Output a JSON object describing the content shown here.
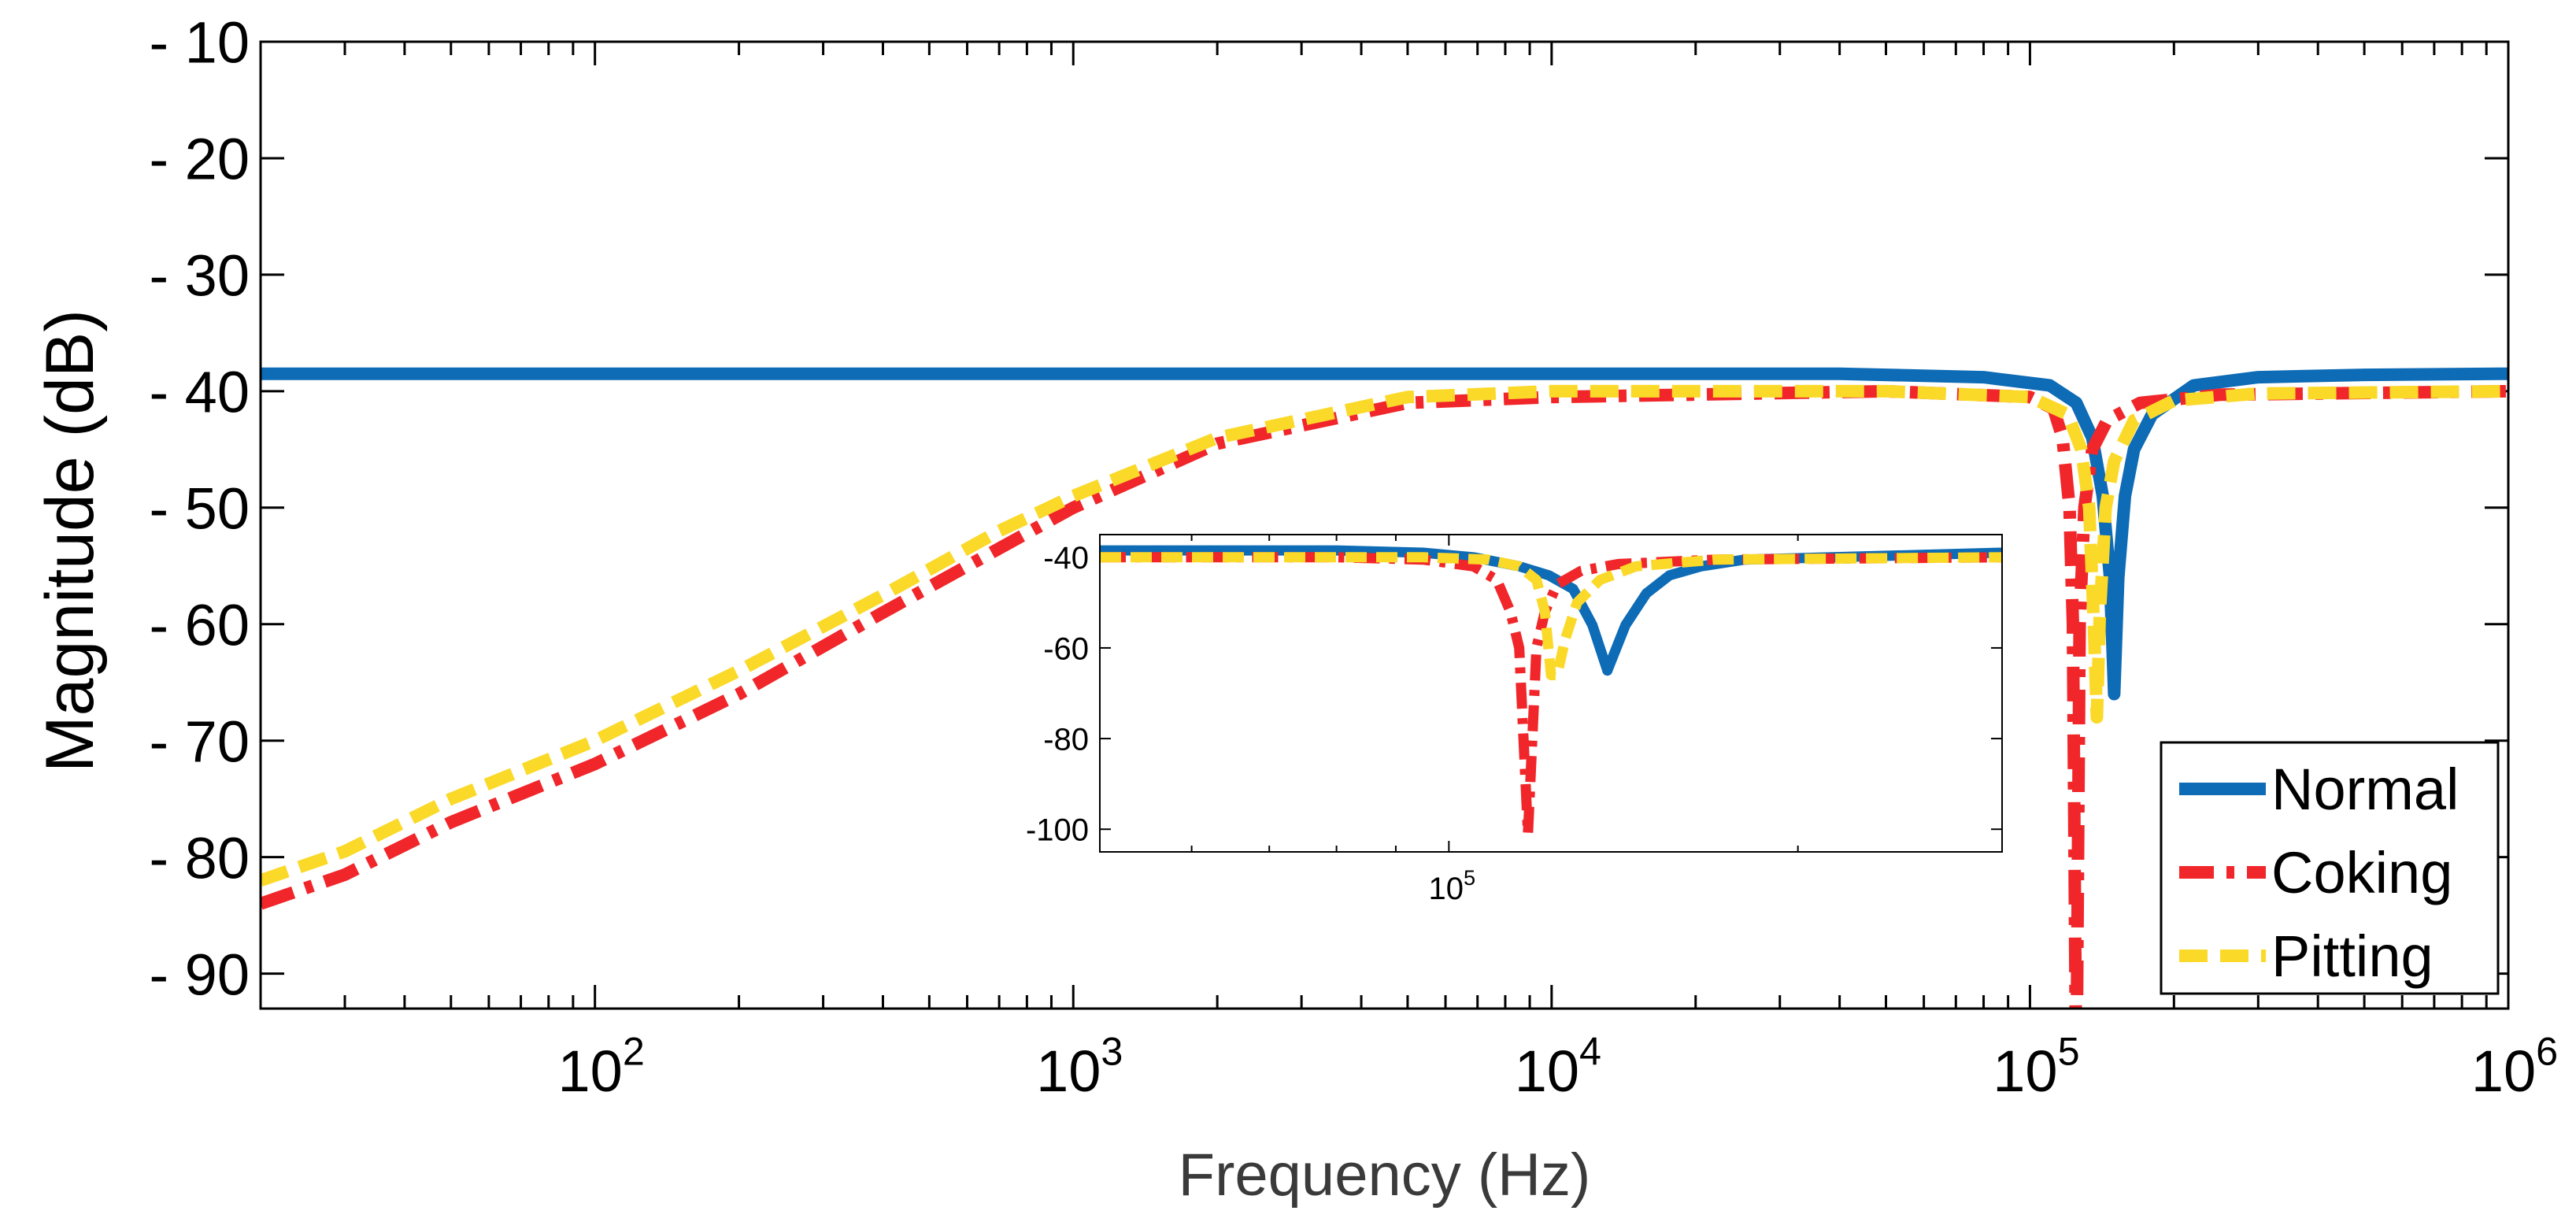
{
  "chart_data": {
    "type": "line",
    "xscale": "log",
    "xlabel": "Frequency (Hz)",
    "ylabel": "Magnitude (dB)",
    "xlim": [
      20,
      1000000
    ],
    "ylim": [
      -93,
      -10
    ],
    "xticks": [
      {
        "value": 100,
        "base": "10",
        "exp": "2"
      },
      {
        "value": 1000,
        "base": "10",
        "exp": "3"
      },
      {
        "value": 10000,
        "base": "10",
        "exp": "4"
      },
      {
        "value": 100000,
        "base": "10",
        "exp": "5"
      },
      {
        "value": 1000000,
        "base": "10",
        "exp": "6"
      }
    ],
    "yticks": [
      {
        "value": -10,
        "label": "- 10"
      },
      {
        "value": -20,
        "label": "- 20"
      },
      {
        "value": -30,
        "label": "- 30"
      },
      {
        "value": -40,
        "label": "- 40"
      },
      {
        "value": -50,
        "label": "- 50"
      },
      {
        "value": -60,
        "label": "- 60"
      },
      {
        "value": -70,
        "label": "- 70"
      },
      {
        "value": -80,
        "label": "- 80"
      },
      {
        "value": -90,
        "label": "- 90"
      }
    ],
    "grid": false,
    "legend_position": "bottom-right",
    "series": [
      {
        "name": "Normal",
        "color": "#0e6bb5",
        "style": "solid",
        "x": [
          20,
          40000,
          80000,
          110000,
          125000,
          135000,
          142000,
          147000,
          150000,
          153000,
          158000,
          165000,
          180000,
          220000,
          300000,
          500000,
          1000000
        ],
        "y": [
          -38.5,
          -38.5,
          -38.8,
          -39.5,
          -41,
          -44,
          -49,
          -56,
          -66,
          -56,
          -49,
          -45,
          -42,
          -39.5,
          -38.8,
          -38.6,
          -38.5
        ]
      },
      {
        "name": "Coking",
        "color": "#f0262a",
        "style": "dashdot",
        "x": [
          20,
          30,
          50,
          100,
          200,
          400,
          700,
          1000,
          2000,
          5000,
          10000,
          50000,
          100000,
          112000,
          117000,
          121000,
          123000,
          125000,
          127000,
          130000,
          135000,
          145000,
          170000,
          250000,
          1000000
        ],
        "y": [
          -84,
          -81.5,
          -77,
          -72,
          -66,
          -59,
          -53.5,
          -50,
          -44.5,
          -41,
          -40.5,
          -40,
          -40.5,
          -41.5,
          -44,
          -50,
          -60,
          -101,
          -60,
          -50,
          -45,
          -42.5,
          -41,
          -40.3,
          -40
        ]
      },
      {
        "name": "Pitting",
        "color": "#fbd928",
        "style": "dashed",
        "x": [
          20,
          30,
          50,
          100,
          200,
          400,
          700,
          1000,
          2000,
          5000,
          10000,
          50000,
          100000,
          120000,
          128000,
          133000,
          136000,
          138000,
          140000,
          144000,
          150000,
          165000,
          200000,
          300000,
          1000000
        ],
        "y": [
          -82,
          -79.5,
          -75,
          -70,
          -64,
          -57.5,
          -52,
          -49,
          -44,
          -40.5,
          -40,
          -40,
          -40.5,
          -42,
          -45,
          -50,
          -60,
          -68,
          -59,
          -50,
          -46,
          -42.5,
          -40.8,
          -40.2,
          -40
        ]
      }
    ],
    "inset": {
      "type": "line",
      "xscale": "log",
      "xlim": [
        50000,
        300000
      ],
      "ylim": [
        -105,
        -35
      ],
      "xticks": [
        {
          "value": 100000,
          "base": "10",
          "exp": "5"
        }
      ],
      "yticks": [
        {
          "value": -40,
          "label": "-40"
        },
        {
          "value": -60,
          "label": "-60"
        },
        {
          "value": -80,
          "label": "-80"
        },
        {
          "value": -100,
          "label": "-100"
        }
      ],
      "series": [
        {
          "name": "Normal",
          "x": [
            50000,
            80000,
            95000,
            105000,
            115000,
            122000,
            128000,
            133000,
            137000,
            142000,
            148000,
            155000,
            165000,
            180000,
            300000
          ],
          "y": [
            -38.5,
            -38.5,
            -39,
            -40,
            -42,
            -44,
            -47,
            -55,
            -65,
            -55,
            -48,
            -44,
            -42,
            -40.5,
            -39
          ]
        },
        {
          "name": "Coking",
          "x": [
            50000,
            80000,
            95000,
            105000,
            110000,
            113000,
            115000,
            117000,
            119000,
            121000,
            124000,
            130000,
            140000,
            170000,
            300000
          ],
          "y": [
            -40,
            -40,
            -40.5,
            -42,
            -45,
            -52,
            -60,
            -101,
            -60,
            -52,
            -46,
            -43,
            -41.5,
            -40.5,
            -40
          ]
        },
        {
          "name": "Pitting",
          "x": [
            50000,
            80000,
            95000,
            108000,
            115000,
            119000,
            121000,
            122500,
            124000,
            126000,
            129000,
            135000,
            145000,
            170000,
            300000
          ],
          "y": [
            -40,
            -40,
            -40,
            -40.5,
            -42,
            -45,
            -52,
            -66,
            -66,
            -58,
            -50,
            -45,
            -42,
            -40.5,
            -40
          ]
        }
      ]
    }
  }
}
